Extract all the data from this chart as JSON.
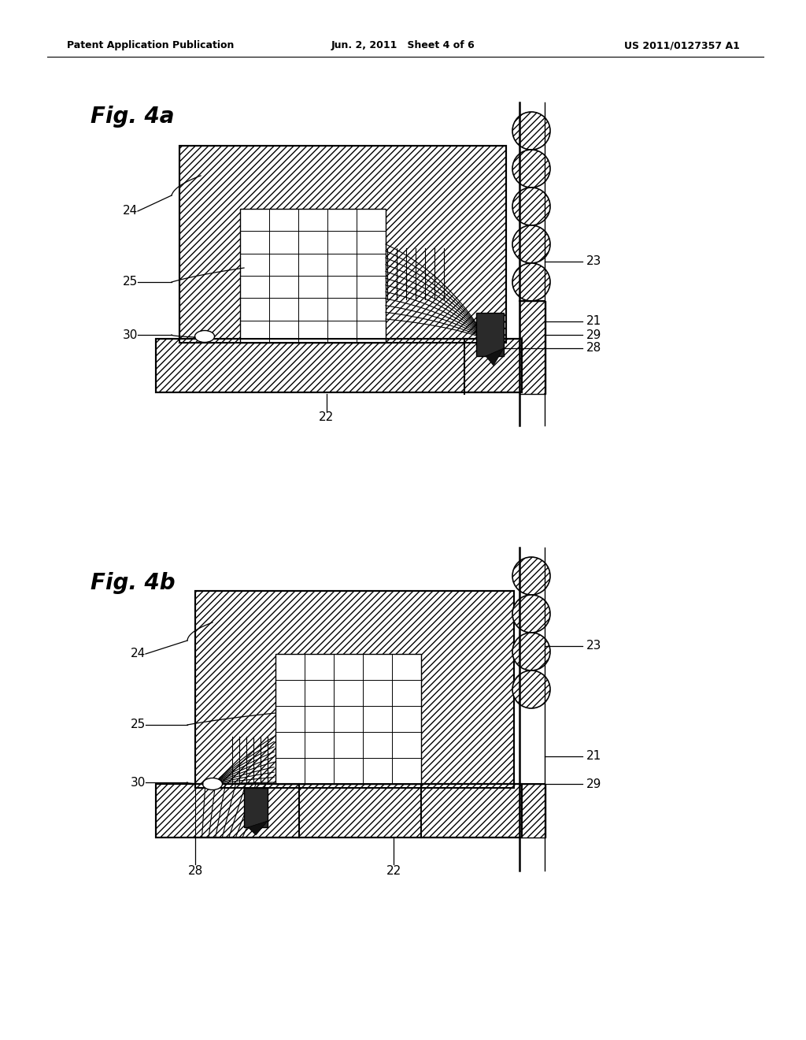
{
  "bg_color": "#ffffff",
  "header_left": "Patent Application Publication",
  "header_center": "Jun. 2, 2011   Sheet 4 of 6",
  "header_right": "US 2011/0127357 A1",
  "fig4a_title": "Fig. 4a",
  "fig4b_title": "Fig. 4b"
}
